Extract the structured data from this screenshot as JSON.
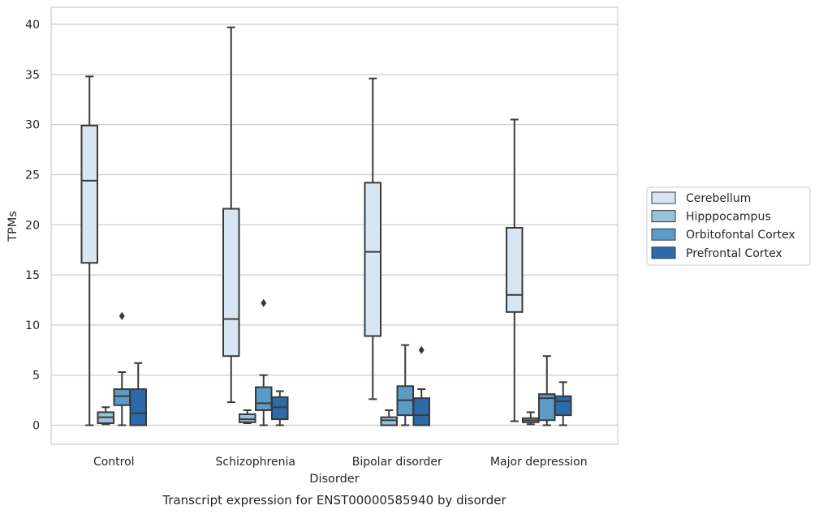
{
  "chart_data": {
    "type": "boxplot",
    "title": "Transcript expression for ENST00000585940 by disorder",
    "xlabel": "Disorder",
    "ylabel": "TPMs",
    "ylim": [
      -1.9,
      41.7
    ],
    "yticks": [
      0,
      5,
      10,
      15,
      20,
      25,
      30,
      35,
      40
    ],
    "grid": true,
    "legend_position": "right",
    "categories": [
      "Control",
      "Schizophrenia",
      "Bipolar disorder",
      "Major depression"
    ],
    "series": [
      {
        "name": "Cerebellum",
        "color": "#d8e5f2",
        "boxes": [
          {
            "whisker_low": 0.0,
            "q1": 16.2,
            "median": 24.4,
            "q3": 29.9,
            "whisker_high": 34.8,
            "outliers": []
          },
          {
            "whisker_low": 2.3,
            "q1": 6.9,
            "median": 10.6,
            "q3": 21.6,
            "whisker_high": 39.7,
            "outliers": []
          },
          {
            "whisker_low": 2.6,
            "q1": 8.9,
            "median": 17.3,
            "q3": 24.2,
            "whisker_high": 34.6,
            "outliers": []
          },
          {
            "whisker_low": 0.4,
            "q1": 11.3,
            "median": 13.0,
            "q3": 19.7,
            "whisker_high": 30.5,
            "outliers": []
          }
        ]
      },
      {
        "name": "Hipppocampus",
        "color": "#9ac2de",
        "boxes": [
          {
            "whisker_low": 0.1,
            "q1": 0.2,
            "median": 0.8,
            "q3": 1.3,
            "whisker_high": 1.8,
            "outliers": []
          },
          {
            "whisker_low": 0.2,
            "q1": 0.3,
            "median": 0.6,
            "q3": 1.1,
            "whisker_high": 1.5,
            "outliers": []
          },
          {
            "whisker_low": 0.0,
            "q1": 0.0,
            "median": 0.5,
            "q3": 0.8,
            "whisker_high": 1.5,
            "outliers": []
          },
          {
            "whisker_low": 0.1,
            "q1": 0.3,
            "median": 0.5,
            "q3": 0.7,
            "whisker_high": 1.3,
            "outliers": []
          }
        ]
      },
      {
        "name": "Orbitofontal Cortex",
        "color": "#5a9bc8",
        "boxes": [
          {
            "whisker_low": 0.0,
            "q1": 2.0,
            "median": 2.9,
            "q3": 3.6,
            "whisker_high": 5.3,
            "outliers": [
              10.9
            ]
          },
          {
            "whisker_low": 0.0,
            "q1": 1.5,
            "median": 2.2,
            "q3": 3.8,
            "whisker_high": 5.0,
            "outliers": [
              12.2
            ]
          },
          {
            "whisker_low": 0.0,
            "q1": 1.0,
            "median": 2.5,
            "q3": 3.9,
            "whisker_high": 8.0,
            "outliers": []
          },
          {
            "whisker_low": 0.0,
            "q1": 0.5,
            "median": 2.7,
            "q3": 3.1,
            "whisker_high": 6.9,
            "outliers": []
          }
        ]
      },
      {
        "name": "Prefrontal Cortex",
        "color": "#2b6bac",
        "boxes": [
          {
            "whisker_low": 0.0,
            "q1": 0.0,
            "median": 1.2,
            "q3": 3.6,
            "whisker_high": 6.2,
            "outliers": []
          },
          {
            "whisker_low": 0.0,
            "q1": 0.6,
            "median": 1.8,
            "q3": 2.8,
            "whisker_high": 3.4,
            "outliers": []
          },
          {
            "whisker_low": 0.0,
            "q1": 0.0,
            "median": 1.0,
            "q3": 2.7,
            "whisker_high": 3.6,
            "outliers": [
              7.5
            ]
          },
          {
            "whisker_low": 0.0,
            "q1": 1.0,
            "median": 2.4,
            "q3": 2.9,
            "whisker_high": 4.3,
            "outliers": []
          }
        ]
      }
    ]
  }
}
